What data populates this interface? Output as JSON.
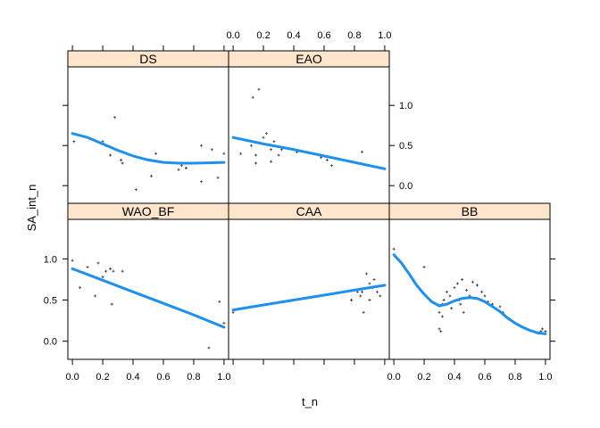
{
  "chart_data": {
    "type": "scatter",
    "title": "",
    "xlabel": "t_n",
    "ylabel": "SA_int_n",
    "xlim": [
      -0.03,
      1.03
    ],
    "ylim": [
      -0.22,
      1.48
    ],
    "x_ticks": [
      0.0,
      0.2,
      0.4,
      0.6,
      0.8,
      1.0
    ],
    "x_tick_labels": [
      "0.0",
      "0.2",
      "0.4",
      "0.6",
      "0.8",
      "1.0"
    ],
    "y_ticks": [
      0.0,
      0.5,
      1.0
    ],
    "y_tick_labels": [
      "0.0",
      "0.5",
      "1.0"
    ],
    "colors": {
      "strip": "#ffe5cc",
      "smooth": "#1e90ef",
      "points": "#444444",
      "frame": "#000000"
    },
    "panels": [
      {
        "name": "DS",
        "points": [
          [
            0.01,
            0.55
          ],
          [
            0.2,
            0.55
          ],
          [
            0.22,
            0.5
          ],
          [
            0.25,
            0.38
          ],
          [
            0.28,
            0.85
          ],
          [
            0.32,
            0.32
          ],
          [
            0.33,
            0.28
          ],
          [
            0.42,
            -0.05
          ],
          [
            0.52,
            0.12
          ],
          [
            0.55,
            0.4
          ],
          [
            0.7,
            0.2
          ],
          [
            0.72,
            0.25
          ],
          [
            0.75,
            0.22
          ],
          [
            0.85,
            0.05
          ],
          [
            0.85,
            0.5
          ],
          [
            0.92,
            0.45
          ],
          [
            0.96,
            0.1
          ],
          [
            1.0,
            0.4
          ]
        ],
        "smooth": [
          [
            0.0,
            0.65
          ],
          [
            0.1,
            0.6
          ],
          [
            0.2,
            0.52
          ],
          [
            0.3,
            0.44
          ],
          [
            0.4,
            0.37
          ],
          [
            0.5,
            0.32
          ],
          [
            0.6,
            0.29
          ],
          [
            0.7,
            0.28
          ],
          [
            0.8,
            0.28
          ],
          [
            0.9,
            0.285
          ],
          [
            1.0,
            0.29
          ]
        ]
      },
      {
        "name": "EAO",
        "points": [
          [
            0.05,
            0.4
          ],
          [
            0.12,
            0.5
          ],
          [
            0.13,
            1.1
          ],
          [
            0.15,
            0.38
          ],
          [
            0.15,
            0.28
          ],
          [
            0.17,
            1.2
          ],
          [
            0.2,
            0.6
          ],
          [
            0.22,
            0.65
          ],
          [
            0.25,
            0.45
          ],
          [
            0.25,
            0.3
          ],
          [
            0.27,
            0.55
          ],
          [
            0.3,
            0.38
          ],
          [
            0.32,
            0.45
          ],
          [
            0.42,
            0.42
          ],
          [
            0.58,
            0.35
          ],
          [
            0.62,
            0.32
          ],
          [
            0.65,
            0.25
          ],
          [
            0.85,
            0.42
          ]
        ],
        "smooth": [
          [
            0.0,
            0.6
          ],
          [
            0.2,
            0.52
          ],
          [
            0.4,
            0.45
          ],
          [
            0.6,
            0.37
          ],
          [
            0.8,
            0.29
          ],
          [
            1.0,
            0.21
          ]
        ]
      },
      {
        "name": "WAO_BF",
        "points": [
          [
            0.0,
            0.98
          ],
          [
            0.05,
            0.65
          ],
          [
            0.1,
            0.9
          ],
          [
            0.15,
            0.55
          ],
          [
            0.17,
            0.95
          ],
          [
            0.2,
            0.78
          ],
          [
            0.22,
            0.85
          ],
          [
            0.25,
            0.88
          ],
          [
            0.26,
            0.45
          ],
          [
            0.27,
            0.85
          ],
          [
            0.33,
            0.85
          ],
          [
            0.9,
            -0.08
          ],
          [
            0.97,
            0.48
          ],
          [
            1.0,
            0.22
          ]
        ],
        "smooth": [
          [
            0.0,
            0.88
          ],
          [
            0.2,
            0.74
          ],
          [
            0.4,
            0.6
          ],
          [
            0.6,
            0.46
          ],
          [
            0.8,
            0.32
          ],
          [
            1.0,
            0.17
          ]
        ]
      },
      {
        "name": "CAA",
        "points": [
          [
            0.0,
            0.35
          ],
          [
            0.78,
            0.5
          ],
          [
            0.82,
            0.6
          ],
          [
            0.84,
            0.55
          ],
          [
            0.85,
            0.6
          ],
          [
            0.86,
            0.35
          ],
          [
            0.88,
            0.82
          ],
          [
            0.9,
            0.7
          ],
          [
            0.9,
            0.5
          ],
          [
            0.92,
            0.65
          ],
          [
            0.93,
            0.75
          ],
          [
            0.95,
            0.6
          ],
          [
            0.97,
            0.55
          ],
          [
            1.0,
            0.68
          ]
        ],
        "smooth": [
          [
            0.0,
            0.38
          ],
          [
            0.2,
            0.44
          ],
          [
            0.4,
            0.5
          ],
          [
            0.6,
            0.56
          ],
          [
            0.8,
            0.62
          ],
          [
            1.0,
            0.68
          ]
        ]
      },
      {
        "name": "BB",
        "points": [
          [
            0.0,
            1.12
          ],
          [
            0.2,
            0.9
          ],
          [
            0.3,
            0.35
          ],
          [
            0.3,
            0.15
          ],
          [
            0.31,
            0.12
          ],
          [
            0.32,
            0.3
          ],
          [
            0.32,
            0.45
          ],
          [
            0.33,
            0.5
          ],
          [
            0.35,
            0.6
          ],
          [
            0.37,
            0.55
          ],
          [
            0.38,
            0.4
          ],
          [
            0.4,
            0.65
          ],
          [
            0.42,
            0.7
          ],
          [
            0.43,
            0.5
          ],
          [
            0.44,
            0.45
          ],
          [
            0.45,
            0.75
          ],
          [
            0.46,
            0.35
          ],
          [
            0.48,
            0.62
          ],
          [
            0.5,
            0.55
          ],
          [
            0.52,
            0.72
          ],
          [
            0.55,
            0.68
          ],
          [
            0.58,
            0.6
          ],
          [
            0.6,
            0.55
          ],
          [
            0.62,
            0.48
          ],
          [
            0.65,
            0.45
          ],
          [
            0.7,
            0.42
          ],
          [
            0.72,
            0.35
          ],
          [
            0.97,
            0.12
          ],
          [
            0.98,
            0.15
          ],
          [
            1.0,
            0.12
          ]
        ],
        "smooth": [
          [
            0.0,
            1.05
          ],
          [
            0.05,
            0.95
          ],
          [
            0.1,
            0.82
          ],
          [
            0.15,
            0.68
          ],
          [
            0.2,
            0.57
          ],
          [
            0.25,
            0.48
          ],
          [
            0.3,
            0.43
          ],
          [
            0.35,
            0.45
          ],
          [
            0.4,
            0.49
          ],
          [
            0.45,
            0.52
          ],
          [
            0.5,
            0.53
          ],
          [
            0.55,
            0.52
          ],
          [
            0.6,
            0.48
          ],
          [
            0.65,
            0.42
          ],
          [
            0.7,
            0.36
          ],
          [
            0.75,
            0.28
          ],
          [
            0.8,
            0.22
          ],
          [
            0.85,
            0.17
          ],
          [
            0.9,
            0.13
          ],
          [
            0.95,
            0.1
          ],
          [
            1.0,
            0.09
          ]
        ]
      }
    ]
  }
}
